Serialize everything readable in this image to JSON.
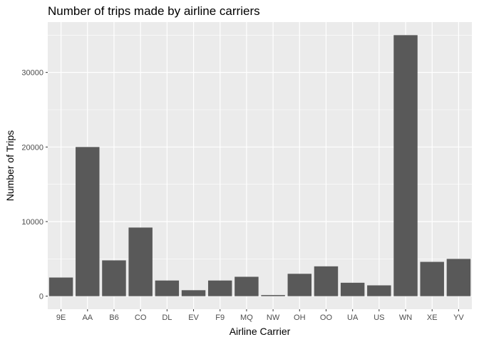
{
  "chart_data": {
    "type": "bar",
    "title": "Number of trips made by airline carriers",
    "xlabel": "Airline Carrier",
    "ylabel": "Number of Trips",
    "categories": [
      "9E",
      "AA",
      "B6",
      "CO",
      "DL",
      "EV",
      "F9",
      "MQ",
      "NW",
      "OH",
      "OO",
      "UA",
      "US",
      "WN",
      "XE",
      "YV"
    ],
    "values": [
      2500,
      20000,
      4800,
      9200,
      2100,
      800,
      2100,
      2600,
      150,
      3000,
      4000,
      1800,
      1450,
      35000,
      4600,
      5000
    ],
    "ylim": [
      -1750,
      36750
    ],
    "yticks": [
      0,
      10000,
      20000,
      30000
    ],
    "grid": true,
    "colors": {
      "panel": "#ebebeb",
      "grid_major": "#ffffff",
      "bar": "#595959",
      "tick_text": "#4d4d4d"
    }
  }
}
